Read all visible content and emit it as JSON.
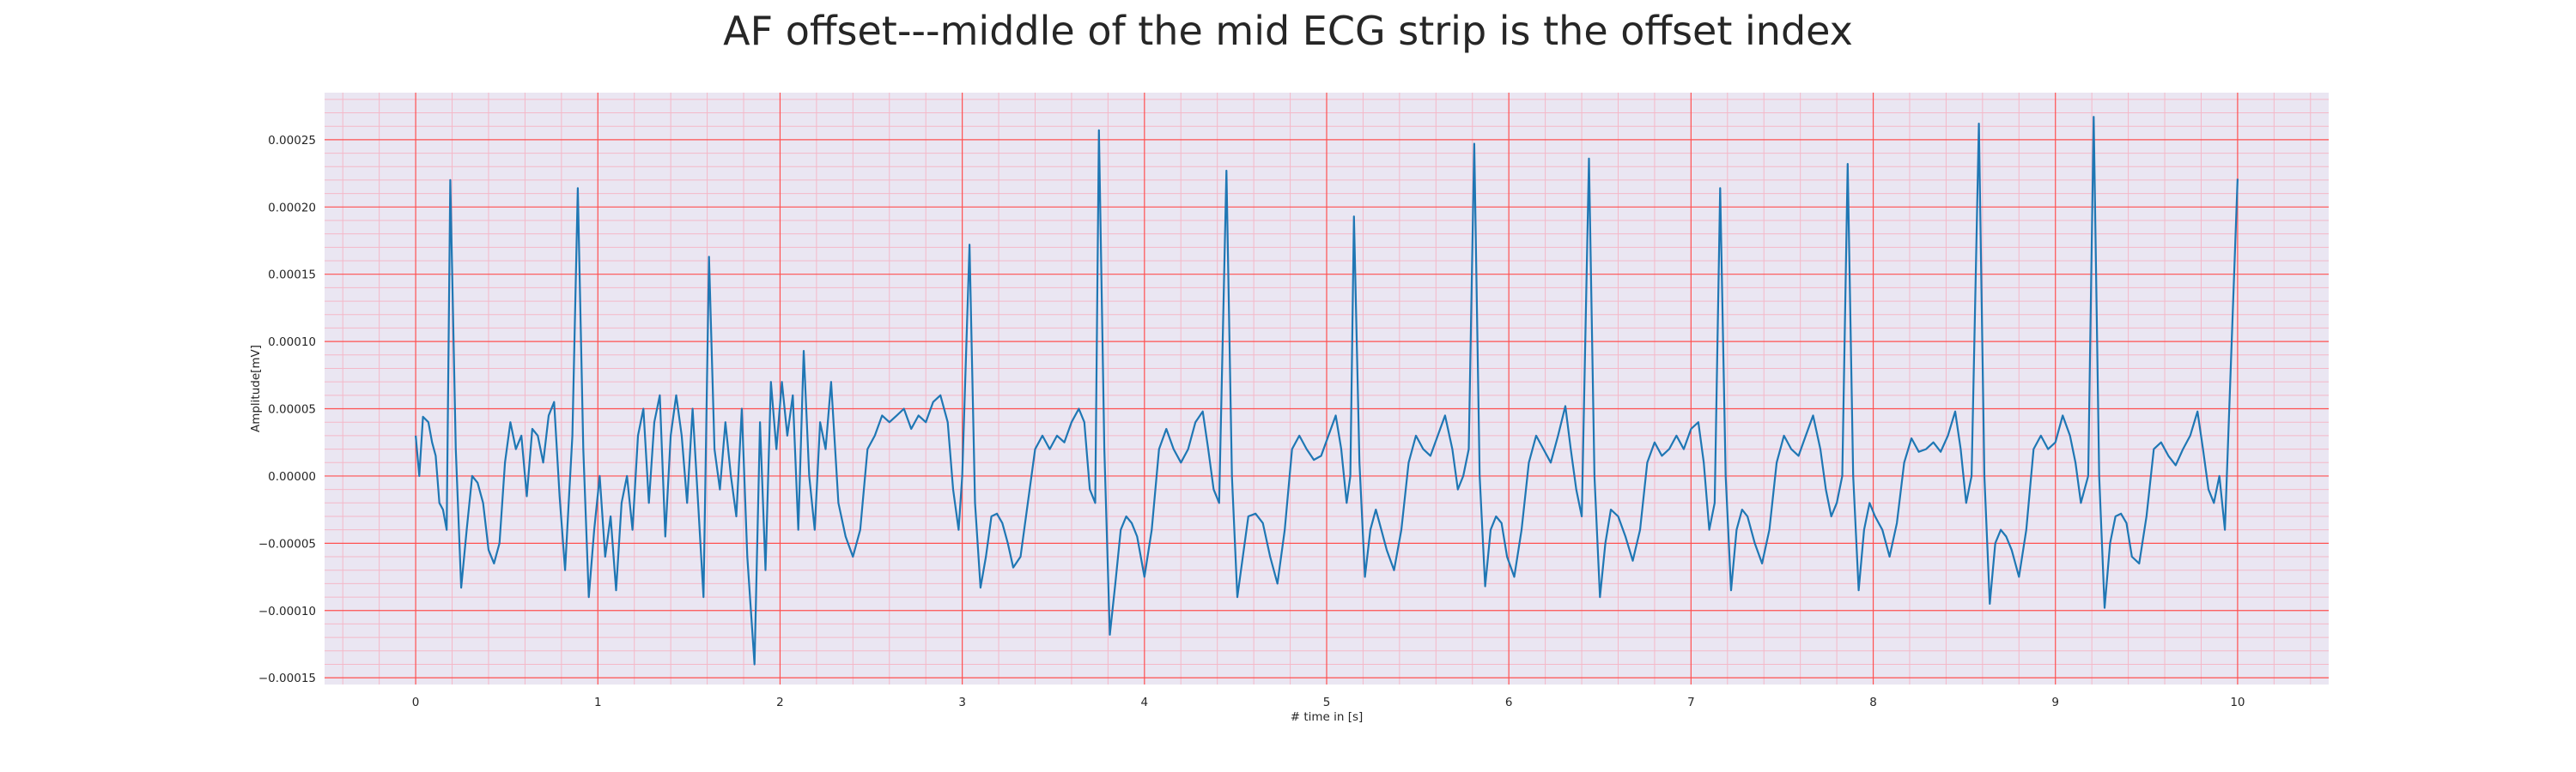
{
  "chart_data": {
    "type": "line",
    "title": "AF offset---middle of the mid ECG strip is the offset index",
    "xlabel": "# time in [s]",
    "ylabel": "Amplitude[mV]",
    "xlim": [
      -0.5,
      10.5
    ],
    "ylim": [
      -0.000155,
      0.000285
    ],
    "xticks": [
      0,
      1,
      2,
      3,
      4,
      5,
      6,
      7,
      8,
      9,
      10
    ],
    "xtick_labels": [
      "0",
      "1",
      "2",
      "3",
      "4",
      "5",
      "6",
      "7",
      "8",
      "9",
      "10"
    ],
    "yticks": [
      -0.00015,
      -0.0001,
      -5e-05,
      0,
      5e-05,
      0.0001,
      0.00015,
      0.0002,
      0.00025
    ],
    "ytick_labels": [
      "−0.00015",
      "−0.00010",
      "−0.00005",
      "0.00000",
      "0.00005",
      "0.00010",
      "0.00015",
      "0.00020",
      "0.00025"
    ],
    "grid": true,
    "colors": {
      "line": "#1f77b4",
      "major_grid": "#ff5050",
      "minor_grid": "#f4b8c8",
      "plot_background": "#eae6f2"
    },
    "series": [
      {
        "points": [
          [
            0.0,
            3e-05
          ],
          [
            0.02,
            0.0
          ],
          [
            0.04,
            4.4e-05
          ],
          [
            0.07,
            4e-05
          ],
          [
            0.09,
            2.5e-05
          ],
          [
            0.11,
            1.5e-05
          ],
          [
            0.13,
            -2e-05
          ],
          [
            0.15,
            -2.5e-05
          ],
          [
            0.17,
            -4e-05
          ],
          [
            0.19,
            0.00022
          ],
          [
            0.22,
            2e-05
          ],
          [
            0.25,
            -8.3e-05
          ],
          [
            0.28,
            -4e-05
          ],
          [
            0.31,
            0.0
          ],
          [
            0.34,
            -5e-06
          ],
          [
            0.37,
            -2e-05
          ],
          [
            0.4,
            -5.5e-05
          ],
          [
            0.43,
            -6.5e-05
          ],
          [
            0.46,
            -5e-05
          ],
          [
            0.49,
            1e-05
          ],
          [
            0.52,
            4e-05
          ],
          [
            0.55,
            2e-05
          ],
          [
            0.58,
            3e-05
          ],
          [
            0.61,
            -1.5e-05
          ],
          [
            0.64,
            3.5e-05
          ],
          [
            0.67,
            3e-05
          ],
          [
            0.7,
            1e-05
          ],
          [
            0.73,
            4.5e-05
          ],
          [
            0.76,
            5.5e-05
          ],
          [
            0.79,
            -1.5e-05
          ],
          [
            0.82,
            -7e-05
          ],
          [
            0.84,
            -2e-05
          ],
          [
            0.86,
            3e-05
          ],
          [
            0.89,
            0.000214
          ],
          [
            0.92,
            2e-05
          ],
          [
            0.95,
            -9e-05
          ],
          [
            0.98,
            -4e-05
          ],
          [
            1.01,
            0.0
          ],
          [
            1.04,
            -6e-05
          ],
          [
            1.07,
            -3e-05
          ],
          [
            1.1,
            -8.5e-05
          ],
          [
            1.13,
            -2e-05
          ],
          [
            1.16,
            0.0
          ],
          [
            1.19,
            -4e-05
          ],
          [
            1.22,
            3e-05
          ],
          [
            1.25,
            5e-05
          ],
          [
            1.28,
            -2e-05
          ],
          [
            1.31,
            4e-05
          ],
          [
            1.34,
            6e-05
          ],
          [
            1.37,
            -4.5e-05
          ],
          [
            1.4,
            3e-05
          ],
          [
            1.43,
            6e-05
          ],
          [
            1.46,
            3e-05
          ],
          [
            1.49,
            -2e-05
          ],
          [
            1.52,
            5e-05
          ],
          [
            1.55,
            -2e-05
          ],
          [
            1.58,
            -9e-05
          ],
          [
            1.61,
            0.000163
          ],
          [
            1.64,
            2e-05
          ],
          [
            1.67,
            -1e-05
          ],
          [
            1.7,
            4e-05
          ],
          [
            1.73,
            0.0
          ],
          [
            1.76,
            -3e-05
          ],
          [
            1.79,
            5e-05
          ],
          [
            1.82,
            -6e-05
          ],
          [
            1.86,
            -0.00014
          ],
          [
            1.89,
            4e-05
          ],
          [
            1.92,
            -7e-05
          ],
          [
            1.95,
            7e-05
          ],
          [
            1.98,
            2e-05
          ],
          [
            2.01,
            7e-05
          ],
          [
            2.04,
            3e-05
          ],
          [
            2.07,
            6e-05
          ],
          [
            2.1,
            -4e-05
          ],
          [
            2.13,
            9.3e-05
          ],
          [
            2.16,
            0.0
          ],
          [
            2.19,
            -4e-05
          ],
          [
            2.22,
            4e-05
          ],
          [
            2.25,
            2e-05
          ],
          [
            2.28,
            7e-05
          ],
          [
            2.32,
            -2e-05
          ],
          [
            2.36,
            -4.5e-05
          ],
          [
            2.4,
            -6e-05
          ],
          [
            2.44,
            -4e-05
          ],
          [
            2.48,
            2e-05
          ],
          [
            2.52,
            3e-05
          ],
          [
            2.56,
            4.5e-05
          ],
          [
            2.6,
            4e-05
          ],
          [
            2.64,
            4.5e-05
          ],
          [
            2.68,
            5e-05
          ],
          [
            2.72,
            3.5e-05
          ],
          [
            2.76,
            4.5e-05
          ],
          [
            2.8,
            4e-05
          ],
          [
            2.84,
            5.5e-05
          ],
          [
            2.88,
            6e-05
          ],
          [
            2.92,
            4e-05
          ],
          [
            2.95,
            -1e-05
          ],
          [
            2.98,
            -4e-05
          ],
          [
            3.0,
            0.0
          ],
          [
            3.04,
            0.000172
          ],
          [
            3.07,
            -2e-05
          ],
          [
            3.1,
            -8.3e-05
          ],
          [
            3.13,
            -6e-05
          ],
          [
            3.16,
            -3e-05
          ],
          [
            3.19,
            -2.8e-05
          ],
          [
            3.22,
            -3.5e-05
          ],
          [
            3.25,
            -5e-05
          ],
          [
            3.28,
            -6.8e-05
          ],
          [
            3.32,
            -6e-05
          ],
          [
            3.36,
            -2e-05
          ],
          [
            3.4,
            2e-05
          ],
          [
            3.44,
            3e-05
          ],
          [
            3.48,
            2e-05
          ],
          [
            3.52,
            3e-05
          ],
          [
            3.56,
            2.5e-05
          ],
          [
            3.6,
            4e-05
          ],
          [
            3.64,
            5e-05
          ],
          [
            3.67,
            4e-05
          ],
          [
            3.7,
            -1e-05
          ],
          [
            3.73,
            -2e-05
          ],
          [
            3.75,
            0.000257
          ],
          [
            3.78,
            2e-05
          ],
          [
            3.81,
            -0.000118
          ],
          [
            3.84,
            -8e-05
          ],
          [
            3.87,
            -4e-05
          ],
          [
            3.9,
            -3e-05
          ],
          [
            3.93,
            -3.5e-05
          ],
          [
            3.96,
            -4.5e-05
          ],
          [
            4.0,
            -7.5e-05
          ],
          [
            4.04,
            -4e-05
          ],
          [
            4.08,
            2e-05
          ],
          [
            4.12,
            3.5e-05
          ],
          [
            4.16,
            2e-05
          ],
          [
            4.2,
            1e-05
          ],
          [
            4.24,
            2e-05
          ],
          [
            4.28,
            4e-05
          ],
          [
            4.32,
            4.8e-05
          ],
          [
            4.35,
            2e-05
          ],
          [
            4.38,
            -1e-05
          ],
          [
            4.41,
            -2e-05
          ],
          [
            4.45,
            0.000227
          ],
          [
            4.48,
            0.0
          ],
          [
            4.51,
            -9e-05
          ],
          [
            4.54,
            -6e-05
          ],
          [
            4.57,
            -3e-05
          ],
          [
            4.61,
            -2.8e-05
          ],
          [
            4.65,
            -3.5e-05
          ],
          [
            4.69,
            -6e-05
          ],
          [
            4.73,
            -8e-05
          ],
          [
            4.77,
            -4e-05
          ],
          [
            4.81,
            2e-05
          ],
          [
            4.85,
            3e-05
          ],
          [
            4.89,
            2e-05
          ],
          [
            4.93,
            1.2e-05
          ],
          [
            4.97,
            1.5e-05
          ],
          [
            5.01,
            3e-05
          ],
          [
            5.05,
            4.5e-05
          ],
          [
            5.08,
            2e-05
          ],
          [
            5.11,
            -2e-05
          ],
          [
            5.13,
            0.0
          ],
          [
            5.15,
            0.000193
          ],
          [
            5.18,
            1e-05
          ],
          [
            5.21,
            -7.5e-05
          ],
          [
            5.24,
            -4e-05
          ],
          [
            5.27,
            -2.5e-05
          ],
          [
            5.3,
            -4e-05
          ],
          [
            5.33,
            -5.5e-05
          ],
          [
            5.37,
            -7e-05
          ],
          [
            5.41,
            -4e-05
          ],
          [
            5.45,
            1e-05
          ],
          [
            5.49,
            3e-05
          ],
          [
            5.53,
            2e-05
          ],
          [
            5.57,
            1.5e-05
          ],
          [
            5.61,
            3e-05
          ],
          [
            5.65,
            4.5e-05
          ],
          [
            5.69,
            2e-05
          ],
          [
            5.72,
            -1e-05
          ],
          [
            5.75,
            0.0
          ],
          [
            5.78,
            2e-05
          ],
          [
            5.81,
            0.000247
          ],
          [
            5.84,
            0.0
          ],
          [
            5.87,
            -8.2e-05
          ],
          [
            5.9,
            -4e-05
          ],
          [
            5.93,
            -3e-05
          ],
          [
            5.96,
            -3.5e-05
          ],
          [
            5.99,
            -6e-05
          ],
          [
            6.03,
            -7.5e-05
          ],
          [
            6.07,
            -4e-05
          ],
          [
            6.11,
            1e-05
          ],
          [
            6.15,
            3e-05
          ],
          [
            6.19,
            2e-05
          ],
          [
            6.23,
            1e-05
          ],
          [
            6.27,
            3e-05
          ],
          [
            6.31,
            5.2e-05
          ],
          [
            6.34,
            2e-05
          ],
          [
            6.37,
            -1e-05
          ],
          [
            6.4,
            -3e-05
          ],
          [
            6.44,
            0.000236
          ],
          [
            6.47,
            0.0
          ],
          [
            6.5,
            -9e-05
          ],
          [
            6.53,
            -5e-05
          ],
          [
            6.56,
            -2.5e-05
          ],
          [
            6.6,
            -3e-05
          ],
          [
            6.64,
            -4.5e-05
          ],
          [
            6.68,
            -6.3e-05
          ],
          [
            6.72,
            -4e-05
          ],
          [
            6.76,
            1e-05
          ],
          [
            6.8,
            2.5e-05
          ],
          [
            6.84,
            1.5e-05
          ],
          [
            6.88,
            2e-05
          ],
          [
            6.92,
            3e-05
          ],
          [
            6.96,
            2e-05
          ],
          [
            7.0,
            3.5e-05
          ],
          [
            7.04,
            4e-05
          ],
          [
            7.07,
            1e-05
          ],
          [
            7.1,
            -4e-05
          ],
          [
            7.13,
            -2e-05
          ],
          [
            7.16,
            0.000214
          ],
          [
            7.19,
            0.0
          ],
          [
            7.22,
            -8.5e-05
          ],
          [
            7.25,
            -4e-05
          ],
          [
            7.28,
            -2.5e-05
          ],
          [
            7.31,
            -3e-05
          ],
          [
            7.35,
            -5e-05
          ],
          [
            7.39,
            -6.5e-05
          ],
          [
            7.43,
            -4e-05
          ],
          [
            7.47,
            1e-05
          ],
          [
            7.51,
            3e-05
          ],
          [
            7.55,
            2e-05
          ],
          [
            7.59,
            1.5e-05
          ],
          [
            7.63,
            3e-05
          ],
          [
            7.67,
            4.5e-05
          ],
          [
            7.71,
            2e-05
          ],
          [
            7.74,
            -1e-05
          ],
          [
            7.77,
            -3e-05
          ],
          [
            7.8,
            -2e-05
          ],
          [
            7.83,
            0.0
          ],
          [
            7.86,
            0.000232
          ],
          [
            7.89,
            0.0
          ],
          [
            7.92,
            -8.5e-05
          ],
          [
            7.95,
            -4e-05
          ],
          [
            7.98,
            -2e-05
          ],
          [
            8.01,
            -3e-05
          ],
          [
            8.05,
            -4e-05
          ],
          [
            8.09,
            -6e-05
          ],
          [
            8.13,
            -3.5e-05
          ],
          [
            8.17,
            1e-05
          ],
          [
            8.21,
            2.8e-05
          ],
          [
            8.25,
            1.8e-05
          ],
          [
            8.29,
            2e-05
          ],
          [
            8.33,
            2.5e-05
          ],
          [
            8.37,
            1.8e-05
          ],
          [
            8.41,
            3e-05
          ],
          [
            8.45,
            4.8e-05
          ],
          [
            8.48,
            2e-05
          ],
          [
            8.51,
            -2e-05
          ],
          [
            8.54,
            0.0
          ],
          [
            8.58,
            0.000262
          ],
          [
            8.61,
            0.0
          ],
          [
            8.64,
            -9.5e-05
          ],
          [
            8.67,
            -5e-05
          ],
          [
            8.7,
            -4e-05
          ],
          [
            8.73,
            -4.5e-05
          ],
          [
            8.76,
            -5.5e-05
          ],
          [
            8.8,
            -7.5e-05
          ],
          [
            8.84,
            -4e-05
          ],
          [
            8.88,
            2e-05
          ],
          [
            8.92,
            3e-05
          ],
          [
            8.96,
            2e-05
          ],
          [
            9.0,
            2.5e-05
          ],
          [
            9.04,
            4.5e-05
          ],
          [
            9.08,
            3e-05
          ],
          [
            9.11,
            1e-05
          ],
          [
            9.14,
            -2e-05
          ],
          [
            9.18,
            0.0
          ],
          [
            9.21,
            0.000267
          ],
          [
            9.24,
            0.0
          ],
          [
            9.27,
            -9.8e-05
          ],
          [
            9.3,
            -5e-05
          ],
          [
            9.33,
            -3e-05
          ],
          [
            9.36,
            -2.8e-05
          ],
          [
            9.39,
            -3.5e-05
          ],
          [
            9.42,
            -6e-05
          ],
          [
            9.46,
            -6.5e-05
          ],
          [
            9.5,
            -3e-05
          ],
          [
            9.54,
            2e-05
          ],
          [
            9.58,
            2.5e-05
          ],
          [
            9.62,
            1.5e-05
          ],
          [
            9.66,
            8e-06
          ],
          [
            9.7,
            2e-05
          ],
          [
            9.74,
            3e-05
          ],
          [
            9.78,
            4.8e-05
          ],
          [
            9.81,
            2e-05
          ],
          [
            9.84,
            -1e-05
          ],
          [
            9.87,
            -2e-05
          ],
          [
            9.9,
            0.0
          ],
          [
            9.93,
            -4e-05
          ],
          [
            10.0,
            0.000221
          ]
        ]
      }
    ]
  }
}
